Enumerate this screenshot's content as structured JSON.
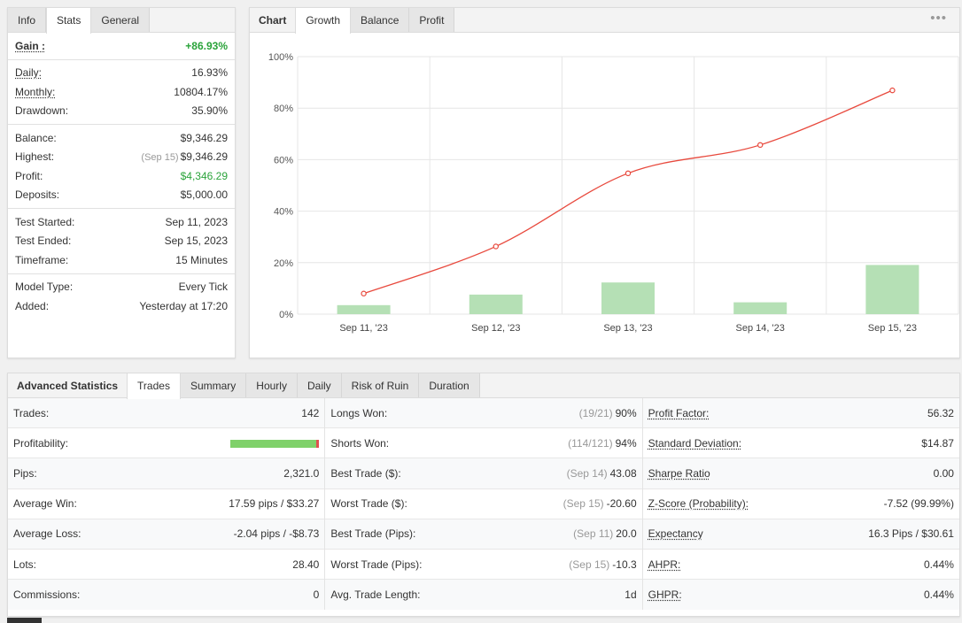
{
  "stats_panel": {
    "tabs": [
      "Info",
      "Stats",
      "General"
    ],
    "active_tab": 1,
    "groups": [
      [
        {
          "label": "Gain :",
          "value": "+86.93%",
          "style": "gain"
        }
      ],
      [
        {
          "label": "Daily:",
          "value": "16.93%",
          "underline": true
        },
        {
          "label": "Monthly:",
          "value": "10804.17%",
          "underline": true
        },
        {
          "label": "Drawdown:",
          "value": "35.90%"
        }
      ],
      [
        {
          "label": "Balance:",
          "value": "$9,346.29"
        },
        {
          "label": "Highest:",
          "note": "(Sep 15)",
          "value": "$9,346.29"
        },
        {
          "label": "Profit:",
          "value": "$4,346.29",
          "style": "green"
        },
        {
          "label": "Deposits:",
          "value": "$5,000.00"
        }
      ],
      [
        {
          "label": "Test Started:",
          "value": "Sep 11, 2023"
        },
        {
          "label": "Test Ended:",
          "value": "Sep 15, 2023"
        },
        {
          "label": "Timeframe:",
          "value": "15 Minutes"
        }
      ],
      [
        {
          "label": "Model Type:",
          "value": "Every Tick"
        },
        {
          "label": "Added:",
          "value": "Yesterday at 17:20"
        }
      ]
    ]
  },
  "chart_panel": {
    "tabs": [
      "Chart",
      "Growth",
      "Balance",
      "Profit"
    ],
    "active_tab": 1,
    "more_glyph": "•••"
  },
  "chart_data": {
    "type": "bar+line",
    "categories": [
      "Sep 11, '23",
      "Sep 12, '23",
      "Sep 13, '23",
      "Sep 14, '23",
      "Sep 15, '23"
    ],
    "y_ticks": [
      "0%",
      "20%",
      "40%",
      "60%",
      "80%",
      "100%"
    ],
    "ylim": [
      0,
      100
    ],
    "grid": true,
    "series": [
      {
        "type": "bar",
        "values": [
          3.5,
          7.6,
          12.3,
          4.6,
          19.1
        ],
        "color": "#b5e0b5"
      },
      {
        "type": "line",
        "values": [
          8,
          26.3,
          54.7,
          65.7,
          86.9
        ],
        "color": "#e8493d"
      }
    ]
  },
  "adv_panel": {
    "tabs": [
      "Advanced Statistics",
      "Trades",
      "Summary",
      "Hourly",
      "Daily",
      "Risk of Ruin",
      "Duration"
    ],
    "active_tab": 1,
    "columns": [
      [
        {
          "label": "Trades:",
          "value": "142"
        },
        {
          "label": "Profitability:",
          "bar": 0.97
        },
        {
          "label": "Pips:",
          "value": "2,321.0"
        },
        {
          "label": "Average Win:",
          "value": "17.59 pips / $33.27"
        },
        {
          "label": "Average Loss:",
          "value": "-2.04 pips / -$8.73"
        },
        {
          "label": "Lots:",
          "value": "28.40"
        },
        {
          "label": "Commissions:",
          "value": "0"
        }
      ],
      [
        {
          "label": "Longs Won:",
          "note": "(19/21)",
          "value": "90%"
        },
        {
          "label": "Shorts Won:",
          "note": "(114/121)",
          "value": "94%"
        },
        {
          "label": "Best Trade ($):",
          "note": "(Sep 14)",
          "value": "43.08"
        },
        {
          "label": "Worst Trade ($):",
          "note": "(Sep 15)",
          "value": "-20.60"
        },
        {
          "label": "Best Trade (Pips):",
          "note": "(Sep 11)",
          "value": "20.0"
        },
        {
          "label": "Worst Trade (Pips):",
          "note": "(Sep 15)",
          "value": "-10.3"
        },
        {
          "label": "Avg. Trade Length:",
          "value": "1d"
        }
      ],
      [
        {
          "label": "Profit Factor:",
          "value": "56.32",
          "underline": true
        },
        {
          "label": "Standard Deviation:",
          "value": "$14.87",
          "underline": true
        },
        {
          "label": "Sharpe Ratio",
          "value": "0.00",
          "underline": true
        },
        {
          "label": "Z-Score (Probability):",
          "value": "-7.52 (99.99%)",
          "underline": true
        },
        {
          "label": "Expectancy",
          "value": "16.3 Pips / $30.61",
          "underline": true
        },
        {
          "label": "AHPR:",
          "value": "0.44%",
          "underline": true
        },
        {
          "label": "GHPR:",
          "value": "0.44%",
          "underline": true
        }
      ]
    ]
  }
}
